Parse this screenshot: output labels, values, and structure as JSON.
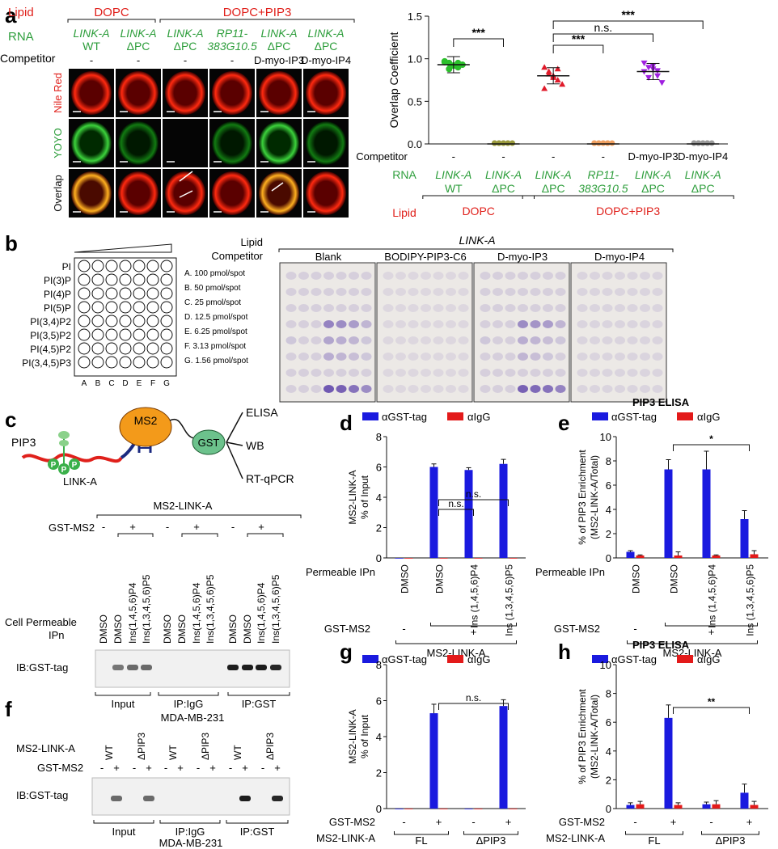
{
  "panel_labels": {
    "a": "a",
    "b": "b",
    "c": "c",
    "d": "d",
    "e": "e",
    "f": "f",
    "g": "g",
    "h": "h"
  },
  "colors": {
    "red": "#e0201b",
    "green": "#2e9e3c",
    "blue": "#1a1adf",
    "bar_red": "#e31a1a",
    "black": "#111111"
  },
  "panel_a": {
    "row_headers": {
      "lipid": "Lipid",
      "rna": "RNA",
      "competitor": "Competitor"
    },
    "lipid_groups": [
      "DOPC",
      "DOPC+PIP3"
    ],
    "columns": [
      {
        "rna1": "LINK-A",
        "rna2": "WT",
        "competitor": "-"
      },
      {
        "rna1": "LINK-A",
        "rna2": "ΔPC",
        "competitor": "-"
      },
      {
        "rna1": "LINK-A",
        "rna2": "ΔPC",
        "competitor": "-"
      },
      {
        "rna1": "RP11-",
        "rna2": "383G10.5",
        "competitor": "-"
      },
      {
        "rna1": "LINK-A",
        "rna2": "ΔPC",
        "competitor": "D-myo-IP3"
      },
      {
        "rna1": "LINK-A",
        "rna2": "ΔPC",
        "competitor": "D-myo-IP4"
      }
    ],
    "image_rows": [
      "Nile Red",
      "YOYO",
      "Overlap"
    ]
  },
  "chart_data": [
    {
      "panel": "a",
      "type": "scatter",
      "ylabel": "Overlap Coefficient",
      "ylim": [
        0,
        1.5
      ],
      "yticks": [
        "0.0",
        "0.5",
        "1.0",
        "1.5"
      ],
      "groups": [
        {
          "competitor": "-",
          "rna1": "LINK-A",
          "rna2": "WT",
          "lipid": "DOPC",
          "mean": 0.93,
          "color": "#2bbf2b",
          "values": [
            0.97,
            0.95,
            0.92,
            0.9,
            0.93,
            0.96,
            0.88,
            0.92,
            0.95
          ]
        },
        {
          "competitor": "-",
          "rna1": "LINK-A",
          "rna2": "ΔPC",
          "lipid": "DOPC",
          "mean": 0.0,
          "color": "#9a9a3c",
          "values": [
            0,
            0,
            0,
            0,
            0,
            0,
            0,
            0,
            0
          ]
        },
        {
          "competitor": "-",
          "rna1": "LINK-A",
          "rna2": "ΔPC",
          "lipid": "DOPC+PIP3",
          "mean": 0.8,
          "color": "#e01a2a",
          "values": [
            0.9,
            0.85,
            0.8,
            0.75,
            0.7,
            0.65,
            0.82,
            0.78,
            0.88
          ]
        },
        {
          "competitor": "-",
          "rna1": "RP11-",
          "rna2": "383G10.5",
          "lipid": "DOPC+PIP3",
          "mean": 0.0,
          "color": "#f0a060",
          "values": [
            0,
            0,
            0,
            0,
            0,
            0,
            0,
            0,
            0
          ]
        },
        {
          "competitor": "D-myo-IP3",
          "rna1": "LINK-A",
          "rna2": "ΔPC",
          "lipid": "DOPC+PIP3",
          "mean": 0.85,
          "color": "#a020e0",
          "values": [
            0.95,
            0.9,
            0.88,
            0.8,
            0.72,
            0.85,
            0.78,
            0.92,
            0.86
          ]
        },
        {
          "competitor": "D-myo-IP4",
          "rna1": "LINK-A",
          "rna2": "ΔPC",
          "lipid": "DOPC+PIP3",
          "mean": 0.0,
          "color": "#999999",
          "values": [
            0,
            0,
            0,
            0,
            0,
            0,
            0,
            0,
            0
          ]
        }
      ],
      "significance": [
        {
          "pair": [
            0,
            1
          ],
          "label": "***"
        },
        {
          "pair": [
            2,
            5
          ],
          "label": "***"
        },
        {
          "pair": [
            2,
            4
          ],
          "label": "n.s."
        },
        {
          "pair": [
            2,
            3
          ],
          "label": "***"
        }
      ],
      "lipid_groups": [
        "DOPC",
        "DOPC+PIP3"
      ],
      "row_headers": {
        "competitor": "Competitor",
        "rna": "RNA",
        "lipid": "Lipid"
      }
    },
    {
      "panel": "d",
      "type": "bar",
      "legend": [
        "αGST-tag",
        "αIgG"
      ],
      "ylabel_lines": [
        "MS2-LINK-A",
        "% of Input"
      ],
      "ylim": [
        0,
        8
      ],
      "yticks": [
        "0",
        "2",
        "4",
        "6",
        "8"
      ],
      "categories": [
        "DMSO",
        "DMSO",
        "Ins (1,4,5,6)P4",
        "Ins (1,3,4,5,6)P5"
      ],
      "series": [
        {
          "name": "αGST-tag",
          "values": [
            0.0,
            6.0,
            5.8,
            6.2
          ],
          "errors": [
            0,
            0.2,
            0.15,
            0.3
          ]
        },
        {
          "name": "αIgG",
          "values": [
            0.0,
            0.0,
            0.0,
            0.0
          ],
          "errors": [
            0,
            0,
            0,
            0
          ]
        }
      ],
      "significance": [
        {
          "pair": [
            1,
            2
          ],
          "label": "n.s."
        },
        {
          "pair": [
            1,
            3
          ],
          "label": "n.s."
        }
      ],
      "row_label": "Permeable IPn",
      "gst_ms2": [
        "-",
        "+"
      ],
      "bottom_label": "MS2-LINK-A"
    },
    {
      "panel": "e",
      "type": "bar",
      "title": "PIP3 ELISA",
      "legend": [
        "αGST-tag",
        "αIgG"
      ],
      "ylabel_lines": [
        "% of PIP3 Enrichment",
        "(MS2-LINK-A/Total)"
      ],
      "ylim": [
        0,
        10
      ],
      "yticks": [
        "0",
        "2",
        "4",
        "6",
        "8",
        "10"
      ],
      "categories": [
        "DMSO",
        "DMSO",
        "Ins (1,4,5,6)P4",
        "Ins (1,3,4,5,6)P5"
      ],
      "series": [
        {
          "name": "αGST-tag",
          "values": [
            0.5,
            7.3,
            7.3,
            3.2
          ],
          "errors": [
            0.1,
            0.8,
            1.5,
            0.7
          ]
        },
        {
          "name": "αIgG",
          "values": [
            0.2,
            0.2,
            0.2,
            0.3
          ],
          "errors": [
            0.05,
            0.3,
            0.05,
            0.3
          ]
        }
      ],
      "significance": [
        {
          "pair": [
            1,
            3
          ],
          "label": "*"
        }
      ],
      "row_label": "Permeable IPn",
      "gst_ms2": [
        "-",
        "+"
      ],
      "bottom_label": "MS2-LINK-A"
    },
    {
      "panel": "g",
      "type": "bar",
      "legend": [
        "αGST-tag",
        "αIgG"
      ],
      "ylabel_lines": [
        "MS2-LINK-A",
        "% of Input"
      ],
      "ylim": [
        0,
        8
      ],
      "yticks": [
        "0",
        "2",
        "4",
        "6",
        "8"
      ],
      "categories": [
        "-",
        "+",
        "-",
        "+"
      ],
      "series": [
        {
          "name": "αGST-tag",
          "values": [
            0.0,
            5.3,
            0.0,
            5.7
          ],
          "errors": [
            0,
            0.5,
            0,
            0.35
          ]
        },
        {
          "name": "αIgG",
          "values": [
            0.0,
            0.0,
            0.0,
            0.0
          ],
          "errors": [
            0,
            0,
            0,
            0
          ]
        }
      ],
      "significance": [
        {
          "pair": [
            1,
            3
          ],
          "label": "n.s."
        }
      ],
      "row_label": "GST-MS2",
      "groups": [
        "FL",
        "ΔPIP3"
      ],
      "bottom_label": "MS2-LINK-A"
    },
    {
      "panel": "h",
      "type": "bar",
      "title": "PIP3 ELISA",
      "legend": [
        "αGST-tag",
        "αIgG"
      ],
      "ylabel_lines": [
        "% of PIP3 Enrichment",
        "(MS2-LINK-A/Total)"
      ],
      "ylim": [
        0,
        10
      ],
      "yticks": [
        "0",
        "2",
        "4",
        "6",
        "8",
        "10"
      ],
      "categories": [
        "-",
        "+",
        "-",
        "+"
      ],
      "series": [
        {
          "name": "αGST-tag",
          "values": [
            0.25,
            6.3,
            0.3,
            1.1
          ],
          "errors": [
            0.15,
            0.9,
            0.15,
            0.6
          ]
        },
        {
          "name": "αIgG",
          "values": [
            0.3,
            0.25,
            0.3,
            0.25
          ],
          "errors": [
            0.2,
            0.15,
            0.25,
            0.25
          ]
        }
      ],
      "significance": [
        {
          "pair": [
            1,
            3
          ],
          "label": "**"
        }
      ],
      "row_label": "GST-MS2",
      "groups": [
        "FL",
        "ΔPIP3"
      ],
      "bottom_label": "MS2-LINK-A"
    }
  ],
  "panel_b": {
    "lipids": [
      "PI",
      "PI(3)P",
      "PI(4)P",
      "PI(5)P",
      "PI(3,4)P2",
      "PI(3,5)P2",
      "PI(4,5)P2",
      "PI(3,4,5)P3"
    ],
    "columns": [
      "A",
      "B",
      "C",
      "D",
      "E",
      "F",
      "G"
    ],
    "amounts": [
      "A. 100 pmol/spot",
      "B. 50 pmol/spot",
      "C. 25 pmol/spot",
      "D. 12.5 pmol/spot",
      "E. 6.25 pmol/spot",
      "F. 3.13 pmol/spot",
      "G. 1.56 pmol/spot"
    ],
    "lipid_label": "Lipid",
    "competitor_label": "Competitor",
    "rna": "LINK-A",
    "blots": [
      "Blank",
      "BODIPY-PIP3-C6",
      "D-myo-IP3",
      "D-myo-IP4"
    ],
    "spot_intensity": [
      [
        0.15,
        0.15,
        0.15,
        0.15,
        0.15,
        0.15,
        0.15,
        0.15,
        0.15,
        0.15,
        0.15,
        0.15,
        0.15,
        0.15,
        0.15,
        0.15,
        0.15,
        0.15,
        0.15,
        0.15,
        0.15,
        0.15,
        0.15,
        0.15,
        0.6,
        0.55,
        0.45,
        0.3,
        0.2,
        0.15,
        0.15,
        0.4,
        0.35,
        0.3,
        0.2,
        0.15,
        0.15,
        0.15,
        0.35,
        0.3,
        0.25,
        0.2,
        0.15,
        0.15,
        0.15,
        0.15,
        0.15,
        0.15,
        0.15,
        0.15,
        0.15,
        0.15,
        0.85,
        0.8,
        0.7,
        0.55,
        0.4,
        0.25,
        0.2
      ],
      [
        0.1,
        0.1,
        0.1,
        0.1,
        0.1,
        0.1,
        0.1,
        0.1,
        0.1,
        0.1,
        0.1,
        0.1,
        0.1,
        0.1,
        0.1,
        0.1,
        0.1,
        0.1,
        0.1,
        0.1,
        0.1,
        0.1,
        0.1,
        0.1,
        0.1,
        0.1,
        0.1,
        0.1,
        0.1,
        0.1,
        0.1,
        0.1,
        0.1,
        0.1,
        0.1,
        0.1,
        0.1,
        0.1,
        0.1,
        0.1,
        0.1,
        0.1,
        0.1,
        0.1,
        0.1,
        0.1,
        0.1,
        0.1,
        0.1,
        0.1,
        0.1,
        0.1,
        0.1,
        0.1,
        0.1,
        0.1,
        0.1
      ],
      [
        0.15,
        0.15,
        0.15,
        0.15,
        0.15,
        0.15,
        0.15,
        0.15,
        0.15,
        0.15,
        0.15,
        0.15,
        0.15,
        0.15,
        0.15,
        0.15,
        0.15,
        0.15,
        0.15,
        0.15,
        0.15,
        0.15,
        0.15,
        0.15,
        0.55,
        0.5,
        0.45,
        0.3,
        0.2,
        0.15,
        0.15,
        0.35,
        0.3,
        0.25,
        0.2,
        0.15,
        0.15,
        0.15,
        0.3,
        0.25,
        0.2,
        0.15,
        0.15,
        0.15,
        0.15,
        0.15,
        0.15,
        0.15,
        0.15,
        0.15,
        0.15,
        0.15,
        0.8,
        0.75,
        0.7,
        0.6,
        0.45,
        0.3,
        0.2
      ],
      [
        0.12,
        0.12,
        0.12,
        0.12,
        0.12,
        0.12,
        0.12,
        0.12,
        0.12,
        0.12,
        0.12,
        0.12,
        0.12,
        0.12,
        0.12,
        0.12,
        0.12,
        0.12,
        0.12,
        0.12,
        0.12,
        0.12,
        0.12,
        0.12,
        0.12,
        0.12,
        0.12,
        0.12,
        0.12,
        0.12,
        0.12,
        0.12,
        0.12,
        0.12,
        0.12,
        0.12,
        0.12,
        0.12,
        0.12,
        0.12,
        0.12,
        0.12,
        0.12,
        0.12,
        0.12,
        0.12,
        0.12,
        0.12,
        0.12,
        0.12,
        0.12,
        0.12,
        0.12,
        0.12,
        0.12,
        0.12,
        0.12
      ]
    ]
  },
  "panel_c": {
    "diagram": {
      "pip3": "PIP3",
      "p": "P",
      "rna": "LINK-A",
      "ms2": "MS2",
      "gst": "GST",
      "outputs": [
        "ELISA",
        "WB",
        "RT-qPCR"
      ]
    },
    "construct": "MS2-LINK-A",
    "gst_label": "GST-MS2",
    "gst_signs": [
      "-",
      "+",
      "-",
      "+",
      "-",
      "+"
    ],
    "ip_label_1": "Cell Permeable",
    "ip_label_2": "IPn",
    "lanes": [
      "DMSO",
      "DMSO",
      "Ins(1,4,5,6)P4",
      "Ins(1,3,4,5,6)P5"
    ],
    "blot_label": "IB:GST-tag",
    "groups": [
      "Input",
      "IP:IgG",
      "IP:GST"
    ],
    "cell_line": "MDA-MB-231",
    "band_intensity": [
      0,
      0.55,
      0.6,
      0.6,
      0,
      0,
      0,
      0,
      0.95,
      0.95,
      0.95,
      0.9
    ]
  },
  "panel_f": {
    "construct_label": "MS2-LINK-A",
    "variants": [
      "WT",
      "ΔPIP3",
      "WT",
      "ΔPIP3",
      "WT",
      "ΔPIP3"
    ],
    "gst_label": "GST-MS2",
    "gst_signs": [
      "-",
      "+",
      "-",
      "+",
      "-",
      "+",
      "-",
      "+",
      "-",
      "+",
      "-",
      "+"
    ],
    "blot_label": "IB:GST-tag",
    "groups": [
      "Input",
      "IP:IgG",
      "IP:GST"
    ],
    "cell_line": "MDA-MB-231",
    "band_intensity": [
      0,
      0.6,
      0,
      0.6,
      0,
      0,
      0,
      0,
      0,
      0.95,
      0,
      0.9
    ]
  }
}
